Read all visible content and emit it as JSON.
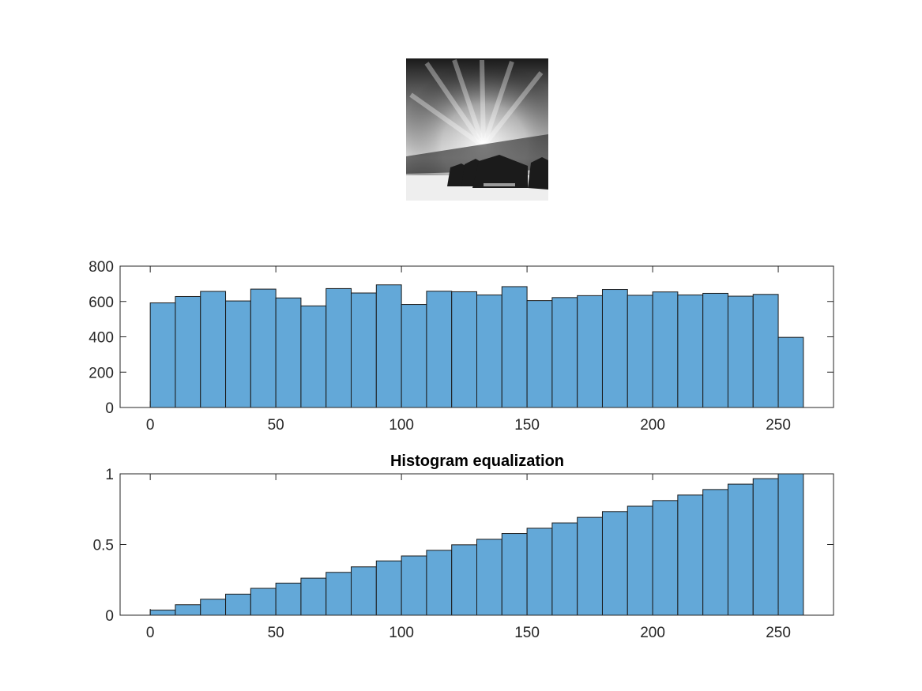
{
  "photo": {
    "description_icon": "snowy-barn-long-exposure-photo"
  },
  "colors": {
    "bar_fill": "#63a8d8",
    "bar_edge": "#1a1a1a",
    "axis": "#262626"
  },
  "chart_data": [
    {
      "type": "bar",
      "title": "",
      "xlabel": "",
      "ylabel": "",
      "bin_edges": [
        0,
        10,
        20,
        30,
        40,
        50,
        60,
        70,
        80,
        90,
        100,
        110,
        120,
        130,
        140,
        150,
        160,
        170,
        180,
        190,
        200,
        210,
        220,
        230,
        240,
        250,
        260
      ],
      "values": [
        592,
        628,
        657,
        603,
        670,
        620,
        575,
        673,
        648,
        694,
        583,
        658,
        655,
        637,
        684,
        605,
        622,
        633,
        668,
        635,
        654,
        637,
        646,
        630,
        640,
        397
      ],
      "xlim": [
        -12,
        272
      ],
      "ylim": [
        0,
        800
      ],
      "xticks": [
        "0",
        "50",
        "100",
        "150",
        "200",
        "250"
      ],
      "xtick_values": [
        0,
        50,
        100,
        150,
        200,
        250
      ],
      "yticks": [
        "0",
        "200",
        "400",
        "600",
        "800"
      ],
      "ytick_values": [
        0,
        200,
        400,
        600,
        800
      ],
      "grid": false
    },
    {
      "type": "bar",
      "title": "Histogram equalization",
      "xlabel": "",
      "ylabel": "",
      "bin_edges": [
        0,
        10,
        20,
        30,
        40,
        50,
        60,
        70,
        80,
        90,
        100,
        110,
        120,
        130,
        140,
        150,
        160,
        170,
        180,
        190,
        200,
        210,
        220,
        230,
        240,
        250,
        260
      ],
      "values": [
        0.036,
        0.074,
        0.113,
        0.149,
        0.19,
        0.227,
        0.262,
        0.303,
        0.342,
        0.384,
        0.419,
        0.459,
        0.498,
        0.537,
        0.578,
        0.615,
        0.653,
        0.692,
        0.733,
        0.771,
        0.811,
        0.85,
        0.889,
        0.927,
        0.966,
        1.0
      ],
      "xlim": [
        -12,
        272
      ],
      "ylim": [
        0,
        1
      ],
      "xticks": [
        "0",
        "50",
        "100",
        "150",
        "200",
        "250"
      ],
      "xtick_values": [
        0,
        50,
        100,
        150,
        200,
        250
      ],
      "yticks": [
        "0",
        "0.5",
        "1"
      ],
      "ytick_values": [
        0,
        0.5,
        1
      ],
      "grid": false
    }
  ]
}
